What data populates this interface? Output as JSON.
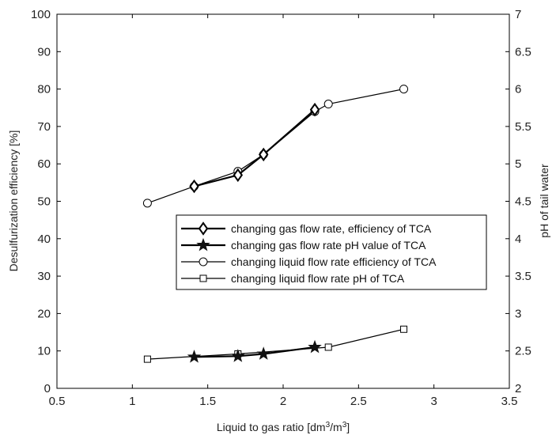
{
  "chart_data": {
    "type": "line",
    "title": "",
    "xlabel": {
      "prefix": "Liquid to gas ratio [dm",
      "sup1": "3",
      "mid": "/m",
      "sup2": "3",
      "suffix": "]"
    },
    "ylabel_left": "Desulfurization efficiency [%]",
    "ylabel_right": "pH of tail water",
    "xlim": [
      0.5,
      3.5
    ],
    "ylim_left": [
      0,
      100
    ],
    "ylim_right": [
      2,
      7
    ],
    "xticks": [
      "0.5",
      "1",
      "1.5",
      "2",
      "2.5",
      "3",
      "3.5"
    ],
    "yticks_left": [
      "0",
      "10",
      "20",
      "30",
      "40",
      "50",
      "60",
      "70",
      "80",
      "90",
      "100"
    ],
    "yticks_right": [
      "2",
      "2.5",
      "3",
      "3.5",
      "4",
      "4.5",
      "5",
      "5.5",
      "6",
      "6.5",
      "7"
    ],
    "grid": false,
    "legend_position": "center-right",
    "series": [
      {
        "name": "changing gas flow rate, efficiency of TCA",
        "marker": "diamond",
        "axis": "left",
        "x": [
          1.41,
          1.7,
          1.87,
          2.21
        ],
        "y": [
          54.0,
          57.0,
          62.5,
          74.5
        ]
      },
      {
        "name": "changing gas flow rate pH value of TCA",
        "marker": "star",
        "axis": "right",
        "x": [
          1.41,
          1.7,
          1.87,
          2.21
        ],
        "y": [
          2.42,
          2.43,
          2.46,
          2.55
        ]
      },
      {
        "name": "changing liquid flow rate efficiency of TCA",
        "marker": "circle",
        "axis": "left",
        "x": [
          1.1,
          1.41,
          1.7,
          1.87,
          2.21,
          2.3,
          2.8
        ],
        "y": [
          49.5,
          54.0,
          58.0,
          62.5,
          74.0,
          76.0,
          80.0
        ]
      },
      {
        "name": "changing liquid flow rate pH of TCA",
        "marker": "square",
        "axis": "right",
        "x": [
          1.1,
          1.7,
          2.3,
          2.8
        ],
        "y": [
          2.39,
          2.46,
          2.55,
          2.79
        ]
      }
    ]
  }
}
